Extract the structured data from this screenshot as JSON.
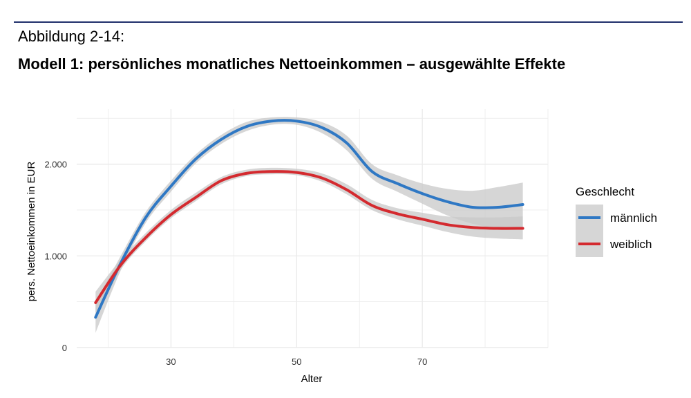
{
  "figure": {
    "label": "Abbildung 2-14:",
    "title": "Modell 1: persönliches monatliches Nettoeinkommen – ausgewählte Effekte"
  },
  "colors": {
    "rule": "#1f2f6b",
    "maennlich": "#2f78c4",
    "weiblich": "#d42a2f",
    "band": "#c8c8c8",
    "grid": "#ebebeb",
    "legend_key_bg": "#d6d6d6"
  },
  "chart_data": {
    "type": "line",
    "title": "",
    "xlabel": "Alter",
    "ylabel": "pers. Nettoeinkommen in EUR",
    "xlim": [
      15,
      90
    ],
    "ylim": [
      0,
      2600
    ],
    "x_ticks": [
      30,
      50,
      70
    ],
    "x_tick_labels": [
      "30",
      "50",
      "70"
    ],
    "y_ticks": [
      0,
      1000,
      2000
    ],
    "y_tick_labels": [
      "0",
      "1.000",
      "2.000"
    ],
    "grid": true,
    "legend": {
      "title": "Geschlecht",
      "position": "right"
    },
    "x": [
      18,
      22,
      26,
      30,
      34,
      38,
      42,
      46,
      50,
      54,
      58,
      62,
      66,
      70,
      74,
      78,
      82,
      86
    ],
    "series": [
      {
        "name": "männlich",
        "color_key": "maennlich",
        "values": [
          330,
          920,
          1420,
          1760,
          2060,
          2270,
          2410,
          2470,
          2470,
          2400,
          2230,
          1920,
          1790,
          1680,
          1590,
          1530,
          1530,
          1560
        ],
        "lower": [
          160,
          840,
          1360,
          1700,
          2010,
          2220,
          2360,
          2430,
          2430,
          2340,
          2150,
          1840,
          1700,
          1570,
          1440,
          1350,
          1300,
          1290
        ],
        "upper": [
          480,
          1000,
          1480,
          1820,
          2110,
          2320,
          2460,
          2510,
          2510,
          2460,
          2310,
          2000,
          1880,
          1790,
          1730,
          1710,
          1750,
          1800
        ]
      },
      {
        "name": "weiblich",
        "color_key": "weiblich",
        "values": [
          490,
          900,
          1200,
          1450,
          1640,
          1820,
          1900,
          1920,
          1910,
          1850,
          1720,
          1550,
          1460,
          1400,
          1340,
          1310,
          1300,
          1300
        ],
        "lower": [
          380,
          850,
          1160,
          1410,
          1600,
          1780,
          1870,
          1890,
          1880,
          1810,
          1670,
          1500,
          1400,
          1330,
          1260,
          1210,
          1190,
          1180
        ],
        "upper": [
          610,
          960,
          1250,
          1500,
          1690,
          1860,
          1940,
          1960,
          1950,
          1900,
          1780,
          1610,
          1520,
          1470,
          1430,
          1420,
          1420,
          1430
        ]
      }
    ]
  }
}
